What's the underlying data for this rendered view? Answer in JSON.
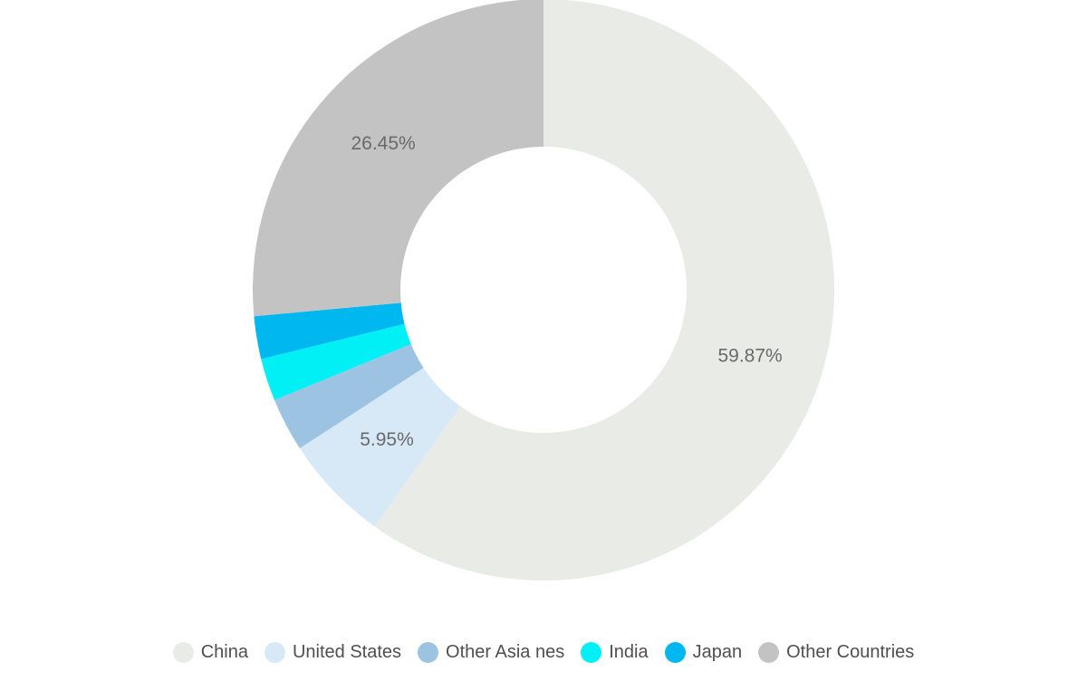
{
  "chart_data": {
    "type": "pie",
    "subtype": "donut",
    "title": "",
    "categories": [
      "China",
      "United States",
      "Other Asia nes",
      "India",
      "Japan",
      "Other Countries"
    ],
    "values": [
      59.87,
      5.95,
      2.99,
      2.36,
      2.38,
      26.45
    ],
    "unit": "%",
    "labels": [
      "59.87%",
      "5.95%",
      null,
      null,
      null,
      "26.45%"
    ],
    "colors": [
      "#e9ebe6",
      "#d7e8f7",
      "#9cc3e2",
      "#00f0f5",
      "#00b7f0",
      "#c3c3c3"
    ],
    "start_angle": "top (12 o'clock), clockwise",
    "legend_position": "bottom",
    "notes": "values for Other Asia nes, India and Japan are estimated from slice angles; their labels are hidden in the chart"
  },
  "style": {
    "background_color": "#ffffff",
    "slice_label_color": "#6a6a6a",
    "legend_text_color": "#4f4f4f",
    "inner_hole_color": "#ffffff"
  }
}
